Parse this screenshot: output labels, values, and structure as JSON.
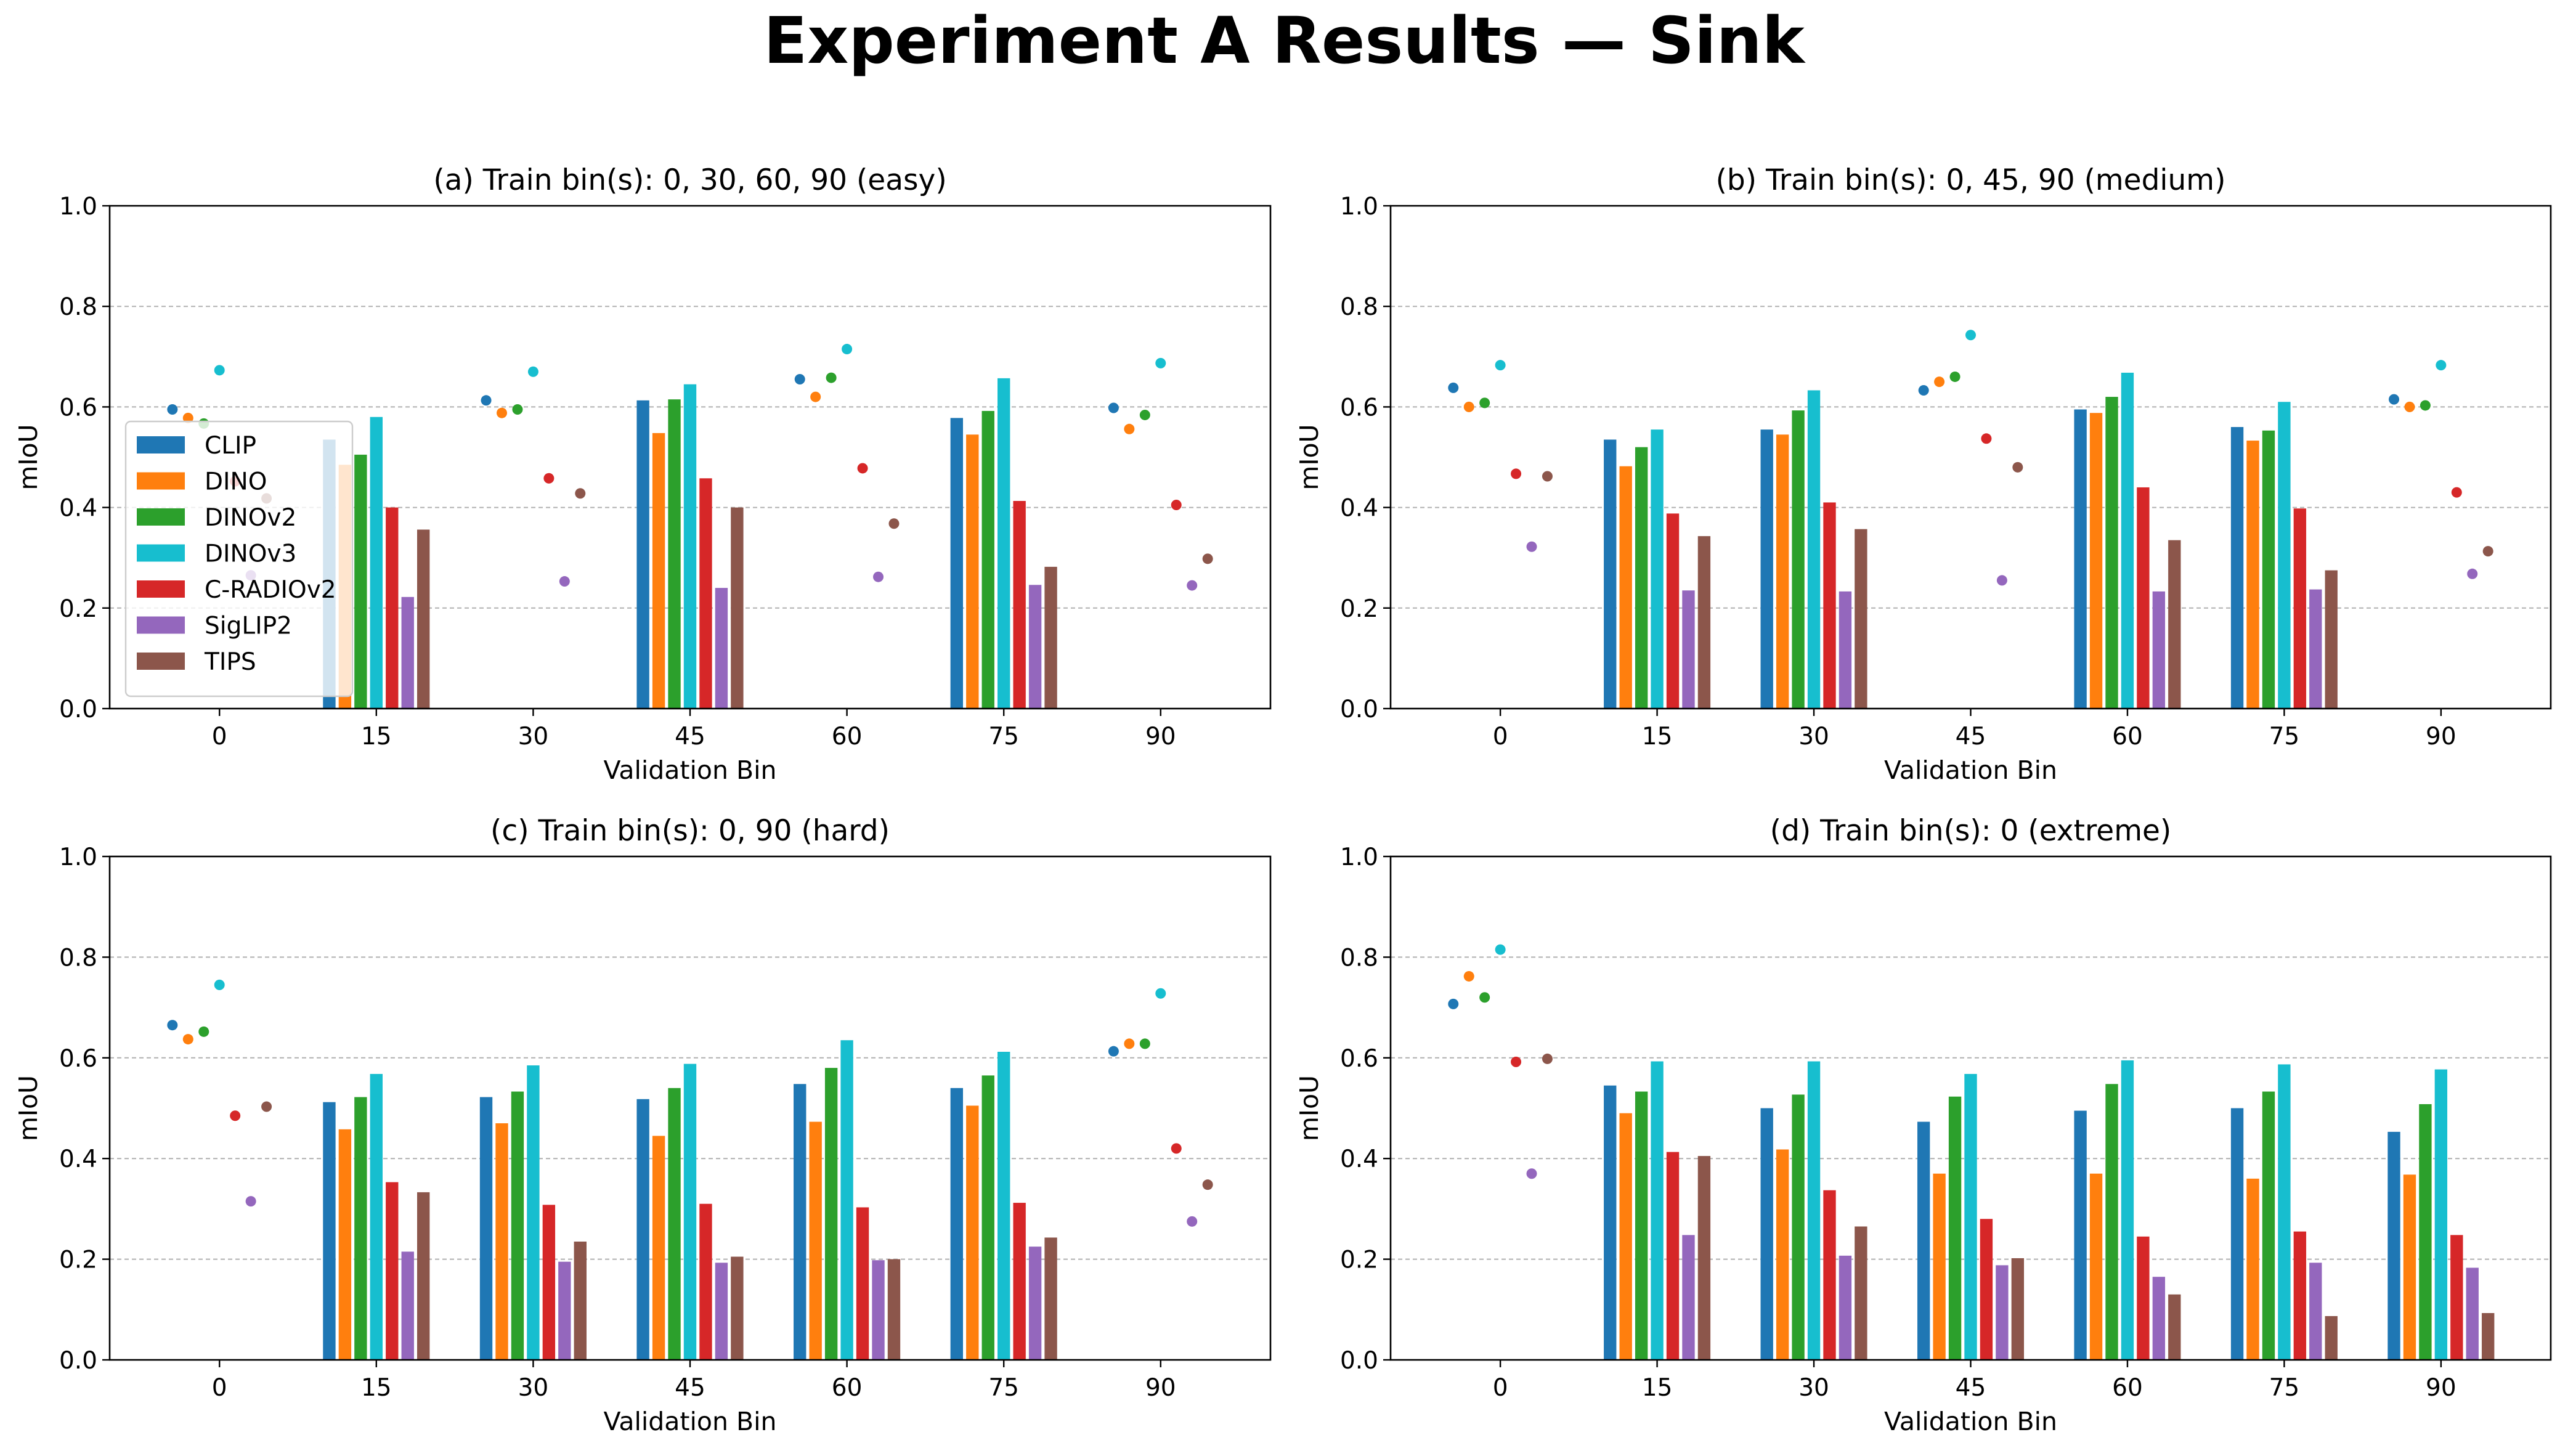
{
  "figure": {
    "title": "Experiment A Results — Sink",
    "xlabel": "Validation Bin",
    "ylabel": "mIoU"
  },
  "legend": {
    "location": "center-left (panel a)",
    "entries": [
      "CLIP",
      "DINO",
      "DINOv2",
      "DINOv3",
      "C-RADIOv2",
      "SigLIP2",
      "TIPS"
    ]
  },
  "colors": {
    "CLIP": "#1f77b4",
    "DINO": "#ff7f0e",
    "DINOv2": "#2ca02c",
    "DINOv3": "#17becf",
    "C-RADIOv2": "#d62728",
    "SigLIP2": "#9467bd",
    "TIPS": "#8c564b"
  },
  "chart_data": [
    {
      "type": "bar",
      "title": "(a) Train bin(s): 0, 30, 60, 90 (easy)",
      "xlabel": "Validation Bin",
      "ylabel": "mIoU",
      "ylim": [
        0,
        1.0
      ],
      "yticks": [
        "0.0",
        "0.2",
        "0.4",
        "0.6",
        "0.8",
        "1.0"
      ],
      "grid": "y dashed",
      "categories": [
        "0",
        "15",
        "30",
        "45",
        "60",
        "75",
        "90"
      ],
      "train_bins_shown_as_points": [
        "0",
        "30",
        "60",
        "90"
      ],
      "series": [
        {
          "name": "CLIP",
          "values": [
            0.595,
            0.535,
            0.613,
            0.613,
            0.655,
            0.578,
            0.598
          ]
        },
        {
          "name": "DINO",
          "values": [
            0.578,
            0.485,
            0.588,
            0.548,
            0.62,
            0.545,
            0.556
          ]
        },
        {
          "name": "DINOv2",
          "values": [
            0.567,
            0.505,
            0.595,
            0.615,
            0.658,
            0.592,
            0.584
          ]
        },
        {
          "name": "DINOv3",
          "values": [
            0.673,
            0.58,
            0.67,
            0.645,
            0.715,
            0.657,
            0.687
          ]
        },
        {
          "name": "C-RADIOv2",
          "values": [
            0.452,
            0.4,
            0.458,
            0.458,
            0.478,
            0.413,
            0.405
          ]
        },
        {
          "name": "SigLIP2",
          "values": [
            0.265,
            0.222,
            0.253,
            0.24,
            0.262,
            0.246,
            0.245
          ]
        },
        {
          "name": "TIPS",
          "values": [
            0.418,
            0.356,
            0.428,
            0.4,
            0.368,
            0.282,
            0.298
          ]
        }
      ]
    },
    {
      "type": "bar",
      "title": "(b) Train bin(s): 0, 45, 90 (medium)",
      "xlabel": "Validation Bin",
      "ylabel": "mIoU",
      "ylim": [
        0,
        1.0
      ],
      "yticks": [
        "0.0",
        "0.2",
        "0.4",
        "0.6",
        "0.8",
        "1.0"
      ],
      "grid": "y dashed",
      "categories": [
        "0",
        "15",
        "30",
        "45",
        "60",
        "75",
        "90"
      ],
      "train_bins_shown_as_points": [
        "0",
        "45",
        "90"
      ],
      "series": [
        {
          "name": "CLIP",
          "values": [
            0.638,
            0.535,
            0.555,
            0.633,
            0.595,
            0.56,
            0.615
          ]
        },
        {
          "name": "DINO",
          "values": [
            0.6,
            0.482,
            0.545,
            0.65,
            0.588,
            0.533,
            0.6
          ]
        },
        {
          "name": "DINOv2",
          "values": [
            0.608,
            0.52,
            0.593,
            0.66,
            0.62,
            0.553,
            0.603
          ]
        },
        {
          "name": "DINOv3",
          "values": [
            0.683,
            0.555,
            0.633,
            0.743,
            0.668,
            0.61,
            0.683
          ]
        },
        {
          "name": "C-RADIOv2",
          "values": [
            0.467,
            0.388,
            0.41,
            0.537,
            0.44,
            0.398,
            0.43
          ]
        },
        {
          "name": "SigLIP2",
          "values": [
            0.322,
            0.235,
            0.233,
            0.255,
            0.233,
            0.237,
            0.268
          ]
        },
        {
          "name": "TIPS",
          "values": [
            0.462,
            0.343,
            0.357,
            0.48,
            0.335,
            0.275,
            0.313
          ]
        }
      ]
    },
    {
      "type": "bar",
      "title": "(c) Train bin(s): 0, 90 (hard)",
      "xlabel": "Validation Bin",
      "ylabel": "mIoU",
      "ylim": [
        0,
        1.0
      ],
      "yticks": [
        "0.0",
        "0.2",
        "0.4",
        "0.6",
        "0.8",
        "1.0"
      ],
      "grid": "y dashed",
      "categories": [
        "0",
        "15",
        "30",
        "45",
        "60",
        "75",
        "90"
      ],
      "train_bins_shown_as_points": [
        "0",
        "90"
      ],
      "series": [
        {
          "name": "CLIP",
          "values": [
            0.665,
            0.512,
            0.522,
            0.518,
            0.548,
            0.54,
            0.613
          ]
        },
        {
          "name": "DINO",
          "values": [
            0.637,
            0.458,
            0.47,
            0.445,
            0.473,
            0.505,
            0.628
          ]
        },
        {
          "name": "DINOv2",
          "values": [
            0.652,
            0.522,
            0.533,
            0.54,
            0.58,
            0.565,
            0.628
          ]
        },
        {
          "name": "DINOv3",
          "values": [
            0.745,
            0.568,
            0.585,
            0.588,
            0.635,
            0.612,
            0.728
          ]
        },
        {
          "name": "C-RADIOv2",
          "values": [
            0.485,
            0.353,
            0.308,
            0.31,
            0.303,
            0.312,
            0.42
          ]
        },
        {
          "name": "SigLIP2",
          "values": [
            0.315,
            0.215,
            0.195,
            0.193,
            0.198,
            0.225,
            0.275
          ]
        },
        {
          "name": "TIPS",
          "values": [
            0.503,
            0.333,
            0.235,
            0.205,
            0.2,
            0.243,
            0.348
          ]
        }
      ]
    },
    {
      "type": "bar",
      "title": "(d) Train bin(s): 0 (extreme)",
      "xlabel": "Validation Bin",
      "ylabel": "mIoU",
      "ylim": [
        0,
        1.0
      ],
      "yticks": [
        "0.0",
        "0.2",
        "0.4",
        "0.6",
        "0.8",
        "1.0"
      ],
      "grid": "y dashed",
      "categories": [
        "0",
        "15",
        "30",
        "45",
        "60",
        "75",
        "90"
      ],
      "train_bins_shown_as_points": [
        "0"
      ],
      "series": [
        {
          "name": "CLIP",
          "values": [
            0.707,
            0.545,
            0.5,
            0.473,
            0.495,
            0.5,
            0.453
          ]
        },
        {
          "name": "DINO",
          "values": [
            0.762,
            0.49,
            0.418,
            0.37,
            0.37,
            0.36,
            0.368
          ]
        },
        {
          "name": "DINOv2",
          "values": [
            0.72,
            0.533,
            0.527,
            0.523,
            0.548,
            0.533,
            0.508
          ]
        },
        {
          "name": "DINOv3",
          "values": [
            0.815,
            0.593,
            0.593,
            0.568,
            0.595,
            0.587,
            0.577
          ]
        },
        {
          "name": "C-RADIOv2",
          "values": [
            0.592,
            0.413,
            0.337,
            0.28,
            0.245,
            0.255,
            0.248
          ]
        },
        {
          "name": "SigLIP2",
          "values": [
            0.37,
            0.248,
            0.207,
            0.188,
            0.165,
            0.193,
            0.183
          ]
        },
        {
          "name": "TIPS",
          "values": [
            0.598,
            0.405,
            0.265,
            0.202,
            0.13,
            0.087,
            0.093
          ]
        }
      ]
    }
  ]
}
